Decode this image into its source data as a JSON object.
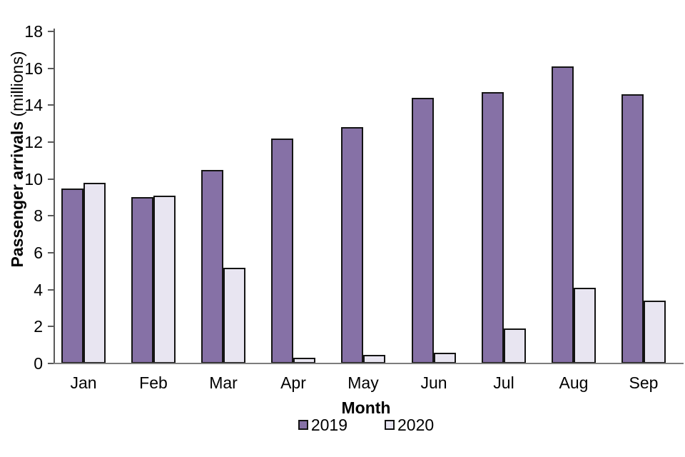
{
  "chart_data": {
    "type": "bar",
    "categories": [
      "Jan",
      "Feb",
      "Mar",
      "Apr",
      "May",
      "Jun",
      "Jul",
      "Aug",
      "Sep"
    ],
    "series": [
      {
        "name": "2019",
        "color": "#8671a6",
        "values": [
          9.5,
          9.0,
          10.5,
          12.2,
          12.8,
          14.4,
          14.7,
          16.1,
          14.6
        ]
      },
      {
        "name": "2020",
        "color": "#e8e5f1",
        "values": [
          9.8,
          9.1,
          5.2,
          0.3,
          0.45,
          0.6,
          1.9,
          4.1,
          3.4
        ]
      }
    ],
    "title": "",
    "xlabel": "Month",
    "ylabel_bold": "Passenger arrivals",
    "ylabel_regular": "(millions)",
    "ylim": [
      0,
      18
    ],
    "ytick_step": 2,
    "yticks": [
      0,
      2,
      4,
      6,
      8,
      10,
      12,
      14,
      16,
      18
    ],
    "grid": false,
    "legend_position": "bottom",
    "bar_outline_color": "#141414",
    "axis_color": "#595959",
    "baseline_color": "#7d7d7d"
  }
}
